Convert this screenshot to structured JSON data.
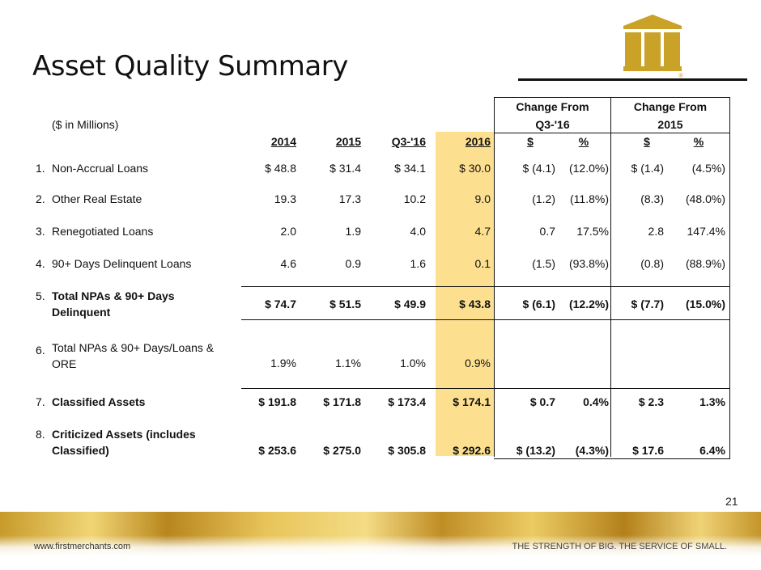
{
  "title": "Asset Quality Summary",
  "units": "($ in Millions)",
  "group_headers": {
    "g1_line1": "Change From",
    "g1_line2": "Q3-'16",
    "g2_line1": "Change From",
    "g2_line2": "2015"
  },
  "columns": [
    "2014",
    "2015",
    "Q3-'16",
    "2016",
    "$",
    "%",
    "$",
    "%"
  ],
  "rows": [
    {
      "num": "1.",
      "label1": "Non-Accrual Loans",
      "label2": "",
      "bold": false,
      "v2014": "$  48.8",
      "v2015": "$  31.4",
      "vq3": "$  34.1",
      "v2016": "$  30.0",
      "cq3d": "$   (4.1)",
      "cq3p": "(12.0%)",
      "c15d": "$   (1.4)",
      "c15p": "(4.5%)"
    },
    {
      "num": "2.",
      "label1": "Other Real Estate",
      "label2": "",
      "bold": false,
      "v2014": "19.3",
      "v2015": "17.3",
      "vq3": "10.2",
      "v2016": "9.0",
      "cq3d": "(1.2)",
      "cq3p": "(11.8%)",
      "c15d": "(8.3)",
      "c15p": "(48.0%)"
    },
    {
      "num": "3.",
      "label1": "Renegotiated Loans",
      "label2": "",
      "bold": false,
      "v2014": "2.0",
      "v2015": "1.9",
      "vq3": "4.0",
      "v2016": "4.7",
      "cq3d": "0.7",
      "cq3p": "17.5%",
      "c15d": "2.8",
      "c15p": "147.4%"
    },
    {
      "num": "4.",
      "label1": "90+ Days Delinquent Loans",
      "label2": "",
      "bold": false,
      "v2014": "4.6",
      "v2015": "0.9",
      "vq3": "1.6",
      "v2016": "0.1",
      "cq3d": "(1.5)",
      "cq3p": "(93.8%)",
      "c15d": "(0.8)",
      "c15p": "(88.9%)"
    },
    {
      "num": "5.",
      "label1": "Total NPAs & 90+ Days",
      "label2": "Delinquent",
      "bold": true,
      "v2014": "$  74.7",
      "v2015": "$  51.5",
      "vq3": "$  49.9",
      "v2016": "$  43.8",
      "cq3d": "$   (6.1)",
      "cq3p": "(12.2%)",
      "c15d": "$   (7.7)",
      "c15p": "(15.0%)"
    },
    {
      "num": "6.",
      "label1": "Total NPAs & 90+ Days/Loans &",
      "label2": "ORE",
      "bold": false,
      "v2014": "1.9%",
      "v2015": "1.1%",
      "vq3": "1.0%",
      "v2016": "0.9%",
      "cq3d": "",
      "cq3p": "",
      "c15d": "",
      "c15p": ""
    },
    {
      "num": "7.",
      "label1": "Classified Assets",
      "label2": "",
      "bold": true,
      "v2014": "$ 191.8",
      "v2015": "$ 171.8",
      "vq3": "$ 173.4",
      "v2016": "$ 174.1",
      "cq3d": "$     0.7",
      "cq3p": "0.4%",
      "c15d": "$     2.3",
      "c15p": "1.3%"
    },
    {
      "num": "8.",
      "label1": "Criticized Assets (includes",
      "label2": "Classified)",
      "bold": true,
      "v2014": "$ 253.6",
      "v2015": "$ 275.0",
      "vq3": "$ 305.8",
      "v2016": "$ 292.6",
      "cq3d": "$  (13.2)",
      "cq3p": "(4.3%)",
      "c15d": "$   17.6",
      "c15p": "6.4%"
    }
  ],
  "page_number": "21",
  "footer": {
    "website": "www.firstmerchants.com",
    "tagline": "THE STRENGTH OF BIG. THE SERVICE OF SMALL."
  },
  "logo": {
    "icon": "first-merchants-logo-icon",
    "color": "#c9a227",
    "registered": "®"
  }
}
